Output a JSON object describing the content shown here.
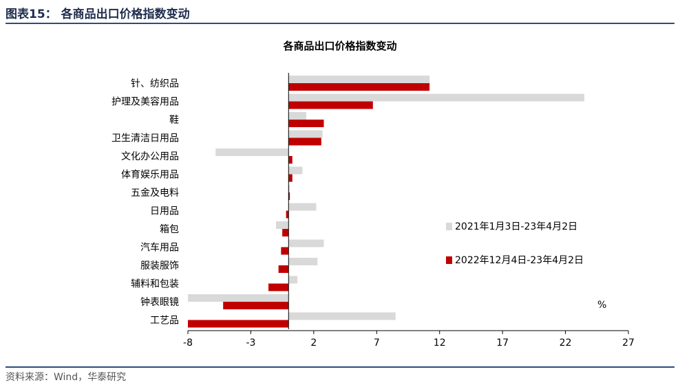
{
  "figure": {
    "title": "图表15：  各商品出口价格指数变动",
    "source": "资料来源：Wind，华泰研究"
  },
  "chart_data": {
    "type": "bar",
    "orientation": "horizontal",
    "title": "各商品出口价格指数变动",
    "unit_label": "%",
    "categories": [
      "针、纺织品",
      "护理及美容用品",
      "鞋",
      "卫生清洁日用品",
      "文化办公用品",
      "体育娱乐用品",
      "五金及电料",
      "日用品",
      "箱包",
      "汽车用品",
      "服装服饰",
      "辅料和包装",
      "钟表眼镜",
      "工艺品"
    ],
    "series": [
      {
        "name": "2021年1月3日-23年4月2日",
        "color": "#d9d9d9",
        "values": [
          11.2,
          23.5,
          1.4,
          2.7,
          -5.8,
          1.1,
          0.1,
          2.2,
          -1.0,
          2.8,
          2.3,
          0.7,
          -8.0,
          8.5
        ]
      },
      {
        "name": "2022年12月4日-23年4月2日",
        "color": "#c00000",
        "values": [
          11.2,
          6.7,
          2.8,
          2.6,
          0.3,
          0.3,
          0.1,
          -0.2,
          -0.5,
          -0.6,
          -0.8,
          -1.6,
          -5.2,
          -8.0
        ]
      }
    ],
    "xlim": [
      -8,
      27
    ],
    "xticks": [
      "-8",
      "-3",
      "2",
      "7",
      "12",
      "17",
      "22",
      "27"
    ],
    "legend_position": "right",
    "grid": false
  }
}
